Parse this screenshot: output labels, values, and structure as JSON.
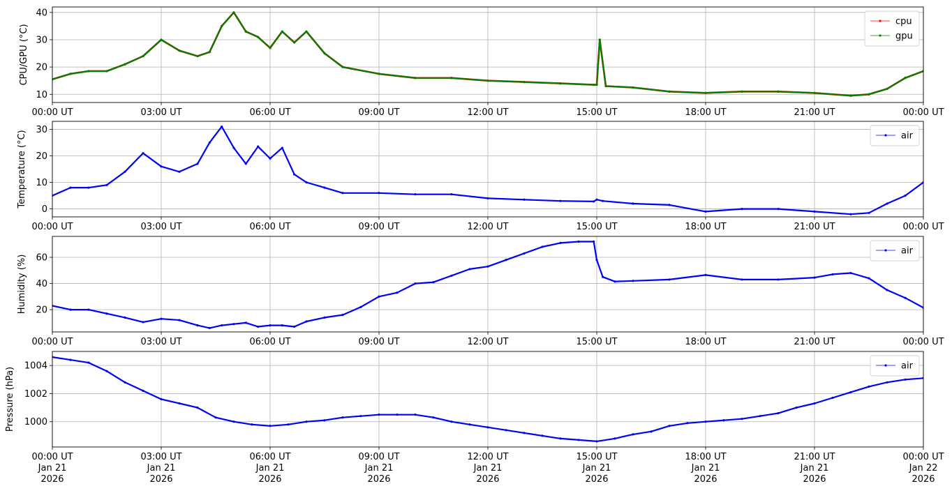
{
  "chart_data": [
    {
      "type": "line",
      "ylabel": "CPU/GPU (°C)",
      "ylim": [
        7,
        42
      ],
      "yticks": [
        10,
        20,
        30,
        40
      ],
      "xticks": [
        "00:00 UT",
        "03:00 UT",
        "06:00 UT",
        "09:00 UT",
        "12:00 UT",
        "15:00 UT",
        "18:00 UT",
        "21:00 UT",
        "00:00 UT"
      ],
      "grid": true,
      "legend": "top-right",
      "x": [
        "00:00",
        "00:30",
        "01:00",
        "01:30",
        "02:00",
        "02:30",
        "03:00",
        "03:30",
        "04:00",
        "04:20",
        "04:40",
        "05:00",
        "05:20",
        "05:40",
        "06:00",
        "06:20",
        "06:40",
        "07:00",
        "07:30",
        "08:00",
        "09:00",
        "10:00",
        "11:00",
        "12:00",
        "13:00",
        "14:00",
        "14:55",
        "15:00",
        "15:05",
        "15:15",
        "16:00",
        "17:00",
        "18:00",
        "19:00",
        "20:00",
        "21:00",
        "22:00",
        "22:30",
        "23:00",
        "23:30",
        "24:00"
      ],
      "series": [
        {
          "name": "cpu",
          "color": "#ff0000",
          "values": [
            15.5,
            17.5,
            18.5,
            18.5,
            21,
            24,
            30,
            26,
            24,
            25.5,
            35,
            40,
            33,
            31,
            27,
            33,
            29,
            33,
            25,
            20,
            17.5,
            16,
            16,
            15,
            14.5,
            14,
            13.5,
            13.5,
            30,
            13,
            12.5,
            11,
            10.5,
            11,
            11,
            10.5,
            9.5,
            10,
            12,
            16,
            18.5
          ]
        },
        {
          "name": "gpu",
          "color": "#008000",
          "values": [
            15.5,
            17.5,
            18.5,
            18.5,
            21,
            24,
            30,
            26,
            24,
            25.5,
            35,
            40,
            33,
            31,
            27,
            33,
            29,
            33,
            25,
            20,
            17.5,
            16,
            16,
            15,
            14.5,
            14,
            13.5,
            13.5,
            30,
            13,
            12.5,
            11,
            10.5,
            11,
            11,
            10.5,
            9.5,
            10,
            12,
            16,
            18.5
          ]
        }
      ]
    },
    {
      "type": "line",
      "ylabel": "Temperature (°C)",
      "ylim": [
        -3,
        33
      ],
      "yticks": [
        0,
        10,
        20,
        30
      ],
      "xticks": [
        "00:00 UT",
        "03:00 UT",
        "06:00 UT",
        "09:00 UT",
        "12:00 UT",
        "15:00 UT",
        "18:00 UT",
        "21:00 UT",
        "00:00 UT"
      ],
      "grid": true,
      "legend": "top-right",
      "x": [
        "00:00",
        "00:30",
        "01:00",
        "01:30",
        "02:00",
        "02:30",
        "03:00",
        "03:30",
        "04:00",
        "04:20",
        "04:40",
        "05:00",
        "05:20",
        "05:40",
        "06:00",
        "06:20",
        "06:40",
        "07:00",
        "07:30",
        "08:00",
        "09:00",
        "10:00",
        "11:00",
        "12:00",
        "13:00",
        "14:00",
        "14:55",
        "15:00",
        "15:10",
        "16:00",
        "17:00",
        "18:00",
        "19:00",
        "20:00",
        "21:00",
        "22:00",
        "22:30",
        "23:00",
        "23:30",
        "24:00"
      ],
      "series": [
        {
          "name": "air",
          "color": "#0000ff",
          "values": [
            5,
            8,
            8,
            9,
            14,
            21,
            16,
            14,
            17,
            25,
            31,
            23,
            17,
            23.5,
            19,
            23,
            13,
            10,
            8,
            6,
            6,
            5.5,
            5.5,
            4,
            3.5,
            3,
            2.8,
            3.5,
            3,
            2,
            1.5,
            -1,
            0,
            0,
            -1,
            -2,
            -1.5,
            2,
            5,
            10
          ]
        }
      ]
    },
    {
      "type": "line",
      "ylabel": "Humidity (%)",
      "ylim": [
        3,
        76
      ],
      "yticks": [
        20,
        40,
        60
      ],
      "xticks": [
        "00:00 UT",
        "03:00 UT",
        "06:00 UT",
        "09:00 UT",
        "12:00 UT",
        "15:00 UT",
        "18:00 UT",
        "21:00 UT",
        "00:00 UT"
      ],
      "grid": true,
      "legend": "top-right",
      "x": [
        "00:00",
        "00:30",
        "01:00",
        "01:30",
        "02:00",
        "02:30",
        "03:00",
        "03:30",
        "04:00",
        "04:20",
        "04:40",
        "05:00",
        "05:20",
        "05:40",
        "06:00",
        "06:20",
        "06:40",
        "07:00",
        "07:30",
        "08:00",
        "08:30",
        "09:00",
        "09:30",
        "10:00",
        "10:30",
        "11:00",
        "11:30",
        "12:00",
        "12:30",
        "13:00",
        "13:30",
        "14:00",
        "14:30",
        "14:55",
        "15:00",
        "15:10",
        "15:30",
        "16:00",
        "17:00",
        "18:00",
        "19:00",
        "20:00",
        "21:00",
        "21:30",
        "22:00",
        "22:30",
        "23:00",
        "23:30",
        "24:00"
      ],
      "series": [
        {
          "name": "air",
          "color": "#0000ff",
          "values": [
            23,
            20,
            20,
            17,
            14,
            10.5,
            13,
            12,
            8,
            6,
            8,
            9,
            10,
            7,
            8,
            8,
            7,
            11,
            14,
            16,
            22,
            30,
            33,
            40,
            41,
            46,
            51,
            53,
            58,
            63,
            68,
            71,
            72,
            72,
            58,
            45,
            41.5,
            42,
            43,
            46.5,
            43,
            43,
            44.5,
            47,
            48,
            44,
            35,
            29,
            21.5
          ]
        }
      ]
    },
    {
      "type": "line",
      "ylabel": "Pressure (hPa)",
      "ylim": [
        998.2,
        1005
      ],
      "yticks": [
        1000,
        1002,
        1004
      ],
      "xticks": [
        "00:00 UT\nJan 21\n2026",
        "03:00 UT\nJan 21\n2026",
        "06:00 UT\nJan 21\n2026",
        "09:00 UT\nJan 21\n2026",
        "12:00 UT\nJan 21\n2026",
        "15:00 UT\nJan 21\n2026",
        "18:00 UT\nJan 21\n2026",
        "21:00 UT\nJan 21\n2026",
        "00:00 UT\nJan 22\n2026"
      ],
      "grid": true,
      "legend": "top-right",
      "x": [
        "00:00",
        "00:30",
        "01:00",
        "01:30",
        "02:00",
        "02:30",
        "03:00",
        "03:30",
        "04:00",
        "04:30",
        "05:00",
        "05:30",
        "06:00",
        "06:30",
        "07:00",
        "07:30",
        "08:00",
        "08:30",
        "09:00",
        "09:30",
        "10:00",
        "10:30",
        "11:00",
        "11:30",
        "12:00",
        "12:30",
        "13:00",
        "13:30",
        "14:00",
        "14:30",
        "15:00",
        "15:30",
        "16:00",
        "16:30",
        "17:00",
        "17:30",
        "18:00",
        "18:30",
        "19:00",
        "19:30",
        "20:00",
        "20:30",
        "21:00",
        "21:30",
        "22:00",
        "22:30",
        "23:00",
        "23:30",
        "24:00"
      ],
      "series": [
        {
          "name": "air",
          "color": "#0000ff",
          "values": [
            1004.6,
            1004.4,
            1004.2,
            1003.6,
            1002.8,
            1002.2,
            1001.6,
            1001.3,
            1001.0,
            1000.3,
            1000.0,
            999.8,
            999.7,
            999.8,
            1000.0,
            1000.1,
            1000.3,
            1000.4,
            1000.5,
            1000.5,
            1000.5,
            1000.3,
            1000.0,
            999.8,
            999.6,
            999.4,
            999.2,
            999.0,
            998.8,
            998.7,
            998.6,
            998.8,
            999.1,
            999.3,
            999.7,
            999.9,
            1000.0,
            1000.1,
            1000.2,
            1000.4,
            1000.6,
            1001.0,
            1001.3,
            1001.7,
            1002.1,
            1002.5,
            1002.8,
            1003.0,
            1003.1
          ]
        }
      ]
    }
  ]
}
